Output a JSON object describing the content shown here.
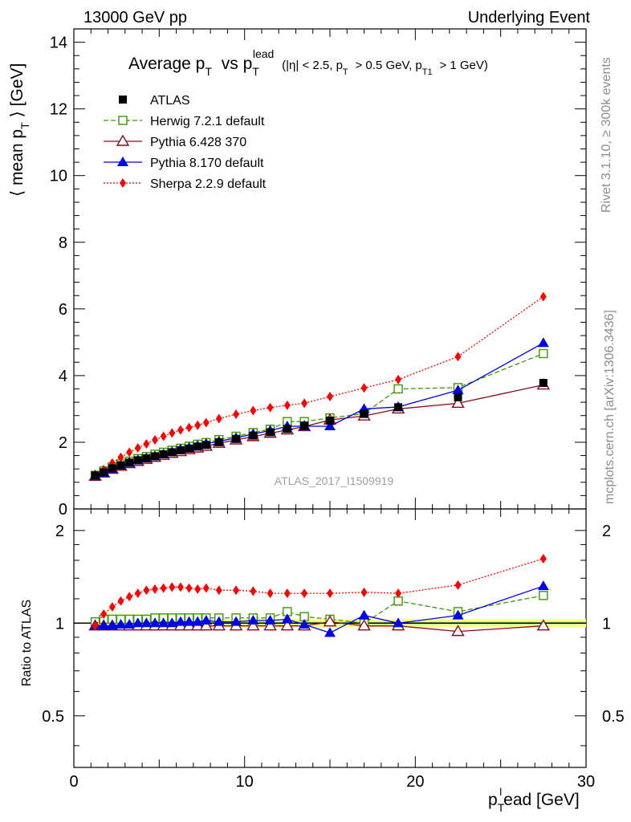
{
  "header": {
    "left": "13000 GeV pp",
    "right": "Underlying Event"
  },
  "side_labels": {
    "rivet": "Rivet 3.1.10, ≥ 300k events",
    "mcplots": "mcplots.cern.ch [arXiv:1306.3436]"
  },
  "watermark": "ATLAS_2017_I1509919",
  "plot_title": {
    "main": "Average p",
    "main_sub": "T",
    "vs": "vs p",
    "vs_sub": "T",
    "vs_sup": "lead",
    "cuts_1": "(|η| < 2.5, p",
    "cuts_1_sub": "T",
    "cuts_2": "> 0.5 GeV, p",
    "cuts_2_sub": "T1",
    "cuts_3": "> 1 GeV)"
  },
  "y_label_main": "⟨ mean p",
  "y_label_main_sub": "T",
  "y_label_main_tail": "⟩ [GeV]",
  "y_label_ratio": "Ratio to ATLAS",
  "x_label": "p",
  "x_label_sub": "T",
  "x_label_sup": "l",
  "x_label_tail": "ead [GeV]",
  "colors": {
    "atlas": "#000000",
    "herwig": "#3a9a00",
    "pythia6": "#8b0a1a",
    "pythia8": "#0000ee",
    "sherpa": "#ff0000",
    "band_yellow": "#ffff80",
    "band_green": "#b0f0a0"
  },
  "chart_data": {
    "type": "line",
    "main": {
      "xlim": [
        0,
        30
      ],
      "ylim": [
        0,
        14.4
      ],
      "yticks": [
        0,
        2,
        4,
        6,
        8,
        10,
        12,
        14
      ],
      "series": [
        {
          "name": "ATLAS",
          "key": "atlas",
          "marker": "square-filled",
          "line": "none",
          "x": [
            1.25,
            1.75,
            2.25,
            2.75,
            3.25,
            3.75,
            4.25,
            4.75,
            5.25,
            5.75,
            6.25,
            6.75,
            7.25,
            7.75,
            8.5,
            9.5,
            10.5,
            11.5,
            12.5,
            13.5,
            15,
            17,
            19,
            22.5,
            27.5
          ],
          "y": [
            1.0,
            1.1,
            1.22,
            1.31,
            1.39,
            1.46,
            1.52,
            1.58,
            1.64,
            1.7,
            1.76,
            1.81,
            1.87,
            1.92,
            2.0,
            2.1,
            2.2,
            2.3,
            2.4,
            2.5,
            2.65,
            2.85,
            3.05,
            3.35,
            3.78
          ]
        },
        {
          "name": "Herwig 7.2.1 default",
          "key": "herwig",
          "marker": "square-open",
          "line": "dashed",
          "x": [
            1.25,
            1.75,
            2.25,
            2.75,
            3.25,
            3.75,
            4.25,
            4.75,
            5.25,
            5.75,
            6.25,
            6.75,
            7.25,
            7.75,
            8.5,
            9.5,
            10.5,
            11.5,
            12.5,
            13.5,
            15,
            17,
            19,
            22.5,
            27.5
          ],
          "y": [
            1.01,
            1.14,
            1.26,
            1.35,
            1.43,
            1.51,
            1.57,
            1.64,
            1.7,
            1.76,
            1.82,
            1.88,
            1.94,
            1.99,
            2.08,
            2.18,
            2.29,
            2.39,
            2.62,
            2.62,
            2.73,
            2.86,
            3.6,
            3.64,
            4.66
          ]
        },
        {
          "name": "Pythia 6.428 370",
          "key": "pythia6",
          "marker": "triangle-open",
          "line": "solid",
          "x": [
            1.25,
            1.75,
            2.25,
            2.75,
            3.25,
            3.75,
            4.25,
            4.75,
            5.25,
            5.75,
            6.25,
            6.75,
            7.25,
            7.75,
            8.5,
            9.5,
            10.5,
            11.5,
            12.5,
            13.5,
            15,
            17,
            19,
            22.5,
            27.5
          ],
          "y": [
            0.98,
            1.08,
            1.19,
            1.28,
            1.36,
            1.43,
            1.49,
            1.55,
            1.61,
            1.67,
            1.72,
            1.78,
            1.83,
            1.88,
            1.97,
            2.07,
            2.17,
            2.27,
            2.37,
            2.47,
            2.67,
            2.79,
            3.0,
            3.17,
            3.72
          ]
        },
        {
          "name": "Pythia 8.170 default",
          "key": "pythia8",
          "marker": "triangle-filled",
          "line": "solid",
          "x": [
            1.25,
            1.75,
            2.25,
            2.75,
            3.25,
            3.75,
            4.25,
            4.75,
            5.25,
            5.75,
            6.25,
            6.75,
            7.25,
            7.75,
            8.5,
            9.5,
            10.5,
            11.5,
            12.5,
            13.5,
            15,
            17,
            19,
            22.5,
            27.5
          ],
          "y": [
            0.98,
            1.08,
            1.2,
            1.3,
            1.38,
            1.46,
            1.52,
            1.58,
            1.64,
            1.71,
            1.79,
            1.84,
            1.9,
            1.96,
            2.03,
            2.13,
            2.25,
            2.35,
            2.48,
            2.48,
            2.48,
            3.0,
            3.06,
            3.56,
            4.98
          ]
        },
        {
          "name": "Sherpa 2.2.9 default",
          "key": "sherpa",
          "marker": "diamond-filled",
          "line": "dotted",
          "x": [
            1.25,
            1.75,
            2.25,
            2.75,
            3.25,
            3.75,
            4.25,
            4.75,
            5.25,
            5.75,
            6.25,
            6.75,
            7.25,
            7.75,
            8.5,
            9.5,
            10.5,
            11.5,
            12.5,
            13.5,
            15,
            17,
            19,
            22.5,
            27.5
          ],
          "y": [
            0.98,
            1.18,
            1.38,
            1.55,
            1.7,
            1.83,
            1.95,
            2.07,
            2.18,
            2.28,
            2.37,
            2.44,
            2.51,
            2.59,
            2.71,
            2.84,
            2.95,
            3.04,
            3.11,
            3.17,
            3.37,
            3.63,
            3.88,
            4.57,
            6.37
          ]
        }
      ]
    },
    "ratio": {
      "xlim": [
        0,
        30
      ],
      "yscale": "log",
      "ylim": [
        0.34,
        2.35
      ],
      "yticks": [
        0.5,
        1,
        2
      ],
      "ytick_labels": [
        "0.5",
        "1",
        "2"
      ],
      "xticks": [
        0,
        10,
        20,
        30
      ],
      "xtick_labels": [
        "0",
        "10",
        "20",
        "30"
      ],
      "series": [
        {
          "key": "herwig",
          "y": [
            1.01,
            1.03,
            1.03,
            1.03,
            1.03,
            1.03,
            1.03,
            1.04,
            1.04,
            1.04,
            1.04,
            1.04,
            1.04,
            1.04,
            1.04,
            1.04,
            1.04,
            1.04,
            1.09,
            1.05,
            1.03,
            1.0,
            1.18,
            1.09,
            1.23
          ]
        },
        {
          "key": "pythia6",
          "y": [
            0.98,
            0.98,
            0.98,
            0.98,
            0.98,
            0.98,
            0.98,
            0.98,
            0.98,
            0.98,
            0.98,
            0.98,
            0.98,
            0.98,
            0.98,
            0.98,
            0.98,
            0.98,
            0.98,
            0.98,
            1.01,
            0.98,
            0.98,
            0.94,
            0.98
          ]
        },
        {
          "key": "pythia8",
          "y": [
            0.98,
            0.98,
            0.98,
            0.99,
            0.99,
            1.0,
            1.0,
            1.0,
            1.0,
            1.0,
            1.01,
            1.01,
            1.01,
            1.02,
            1.01,
            1.01,
            1.02,
            1.02,
            1.03,
            0.99,
            0.93,
            1.06,
            1.0,
            1.06,
            1.32
          ]
        },
        {
          "key": "sherpa",
          "y": [
            0.98,
            1.07,
            1.13,
            1.18,
            1.22,
            1.25,
            1.28,
            1.29,
            1.3,
            1.31,
            1.31,
            1.3,
            1.29,
            1.3,
            1.28,
            1.28,
            1.27,
            1.25,
            1.25,
            1.25,
            1.25,
            1.26,
            1.25,
            1.33,
            1.62
          ]
        }
      ]
    }
  }
}
